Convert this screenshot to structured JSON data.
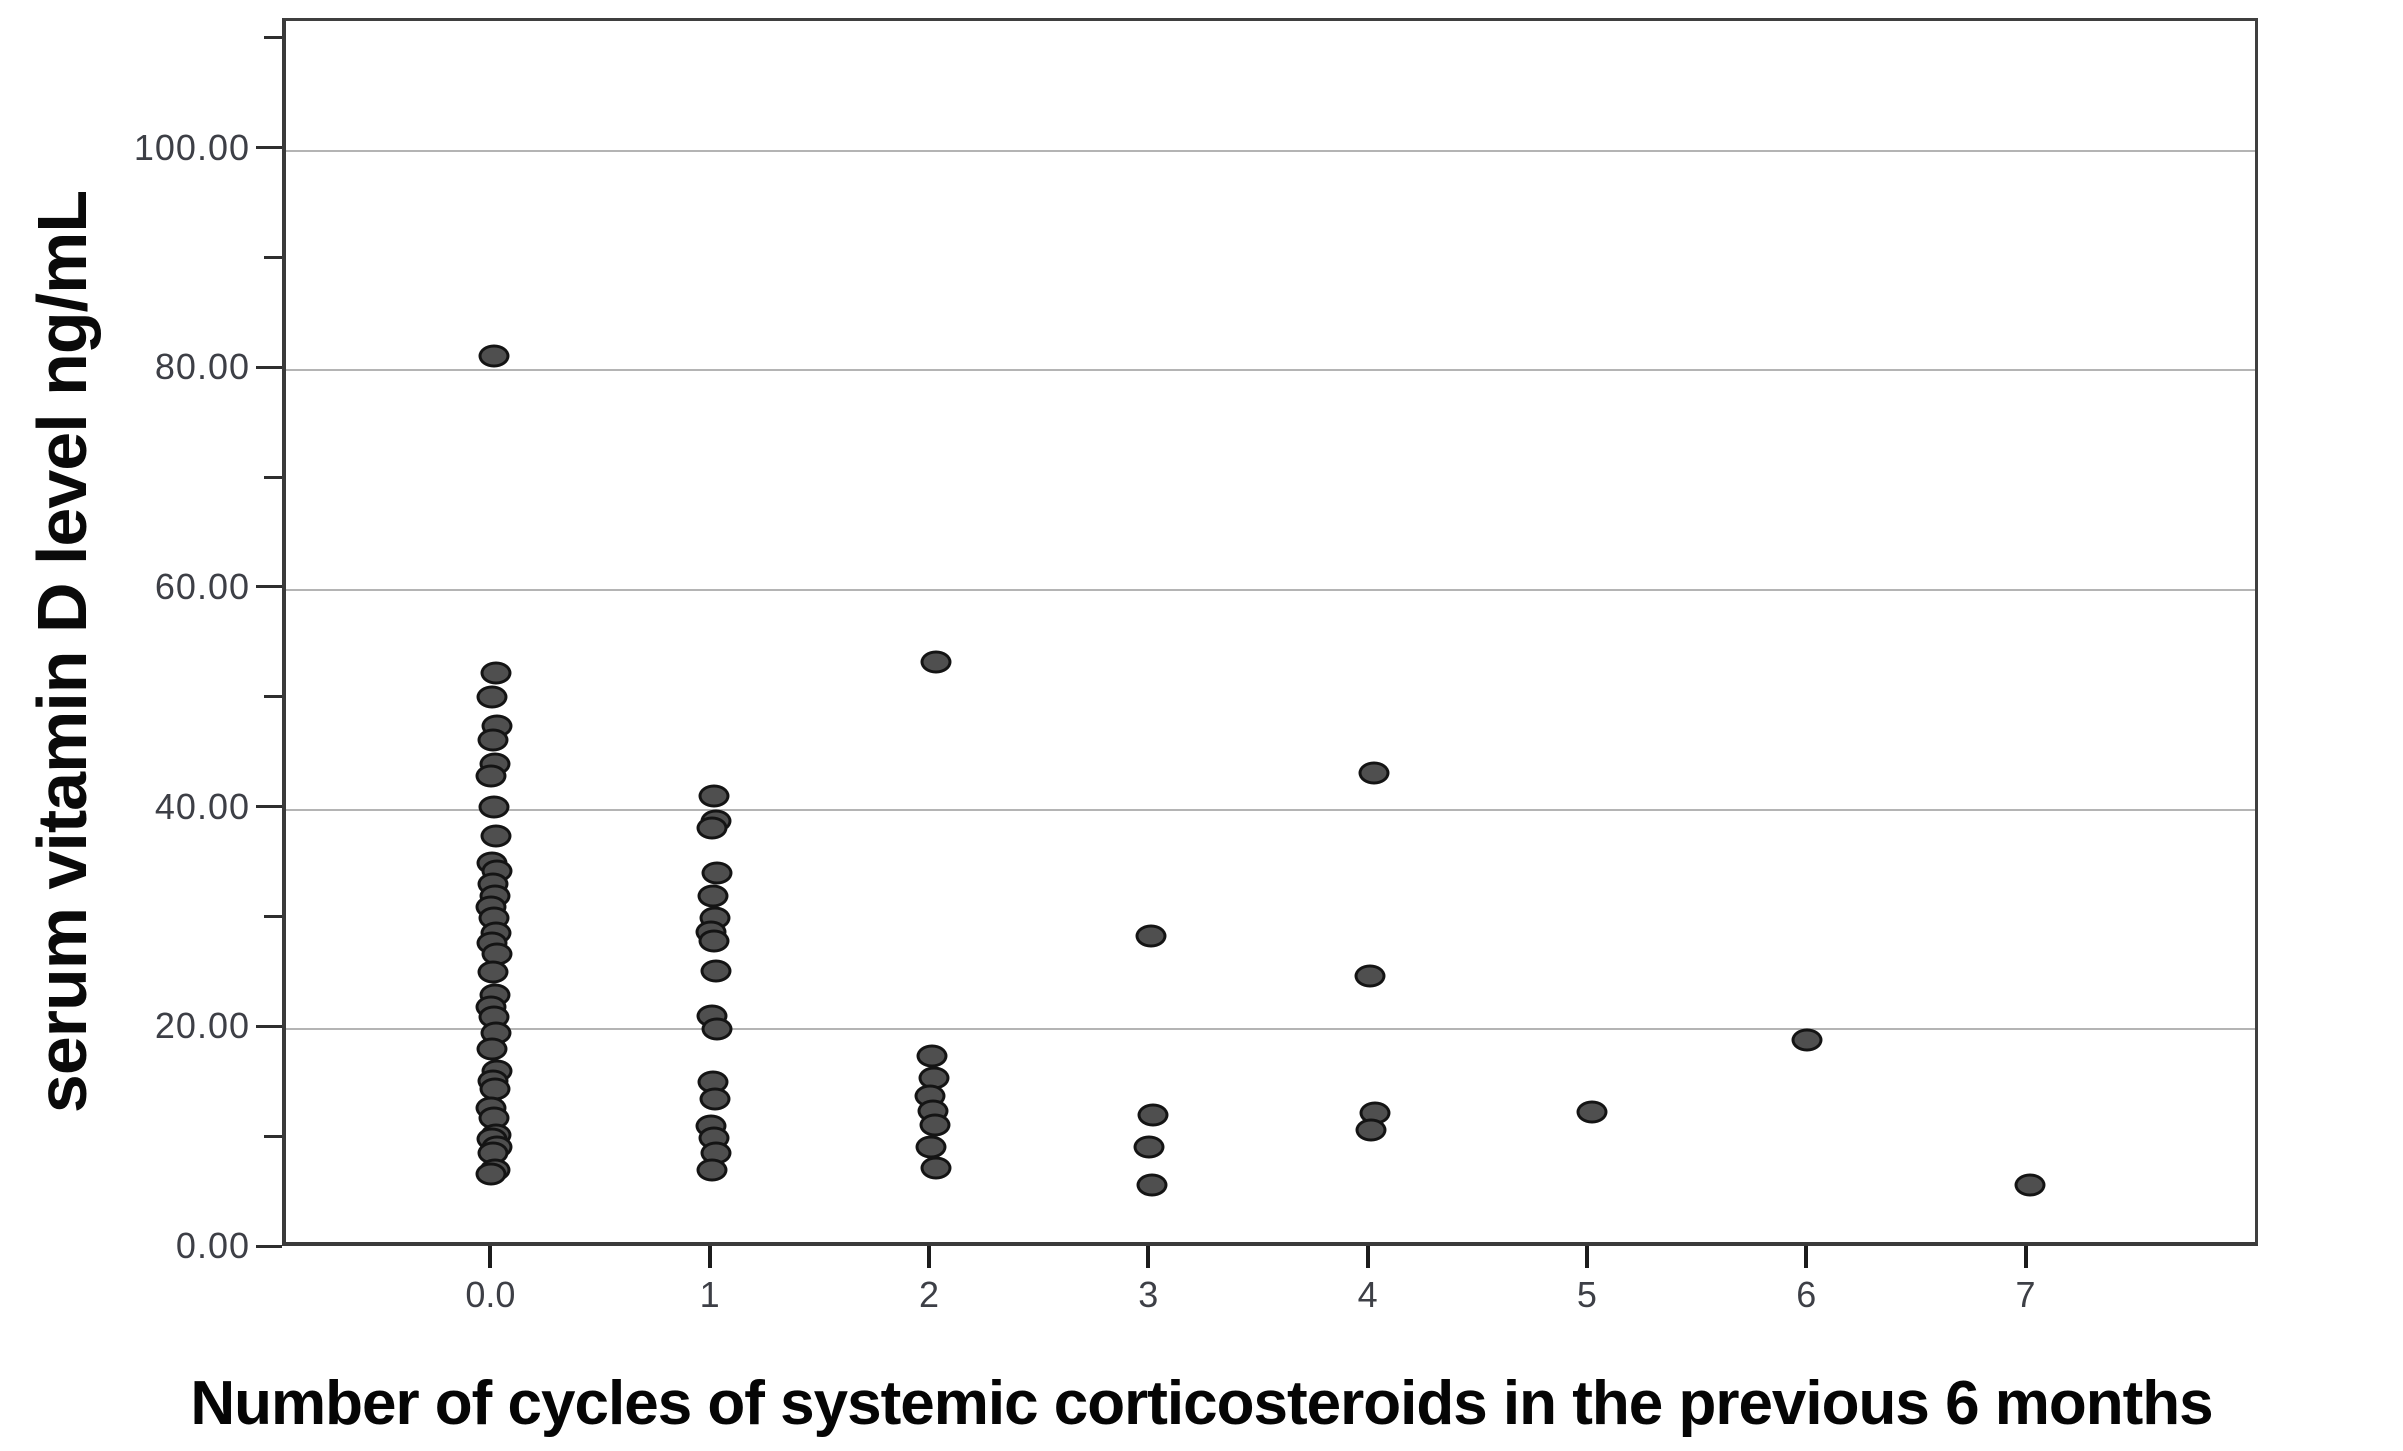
{
  "figure": {
    "background": "#ffffff"
  },
  "chart_data": {
    "type": "scatter",
    "title": "",
    "xlabel": "Number of cycles of systemic corticosteroids in the previous 6 months",
    "ylabel": "serum vitamin D level ng/mL",
    "xlim": [
      -0.95,
      8.06
    ],
    "ylim": [
      0,
      111.8
    ],
    "grid": "horizontal major gridlines only",
    "legend": "none",
    "x_ticks": [
      {
        "value": 0,
        "label": "0.0"
      },
      {
        "value": 1,
        "label": "1"
      },
      {
        "value": 2,
        "label": "2"
      },
      {
        "value": 3,
        "label": "3"
      },
      {
        "value": 4,
        "label": "4"
      },
      {
        "value": 5,
        "label": "5"
      },
      {
        "value": 6,
        "label": "6"
      },
      {
        "value": 7,
        "label": "7"
      }
    ],
    "y_ticks": [
      {
        "value": 0,
        "label": "0.00"
      },
      {
        "value": 20,
        "label": "20.00"
      },
      {
        "value": 40,
        "label": "40.00"
      },
      {
        "value": 60,
        "label": "60.00"
      },
      {
        "value": 80,
        "label": "80.00"
      },
      {
        "value": 100,
        "label": "100.00"
      }
    ],
    "y_minor_ticks": [
      10,
      30,
      50,
      70,
      90,
      110
    ],
    "gridline_values": [
      20,
      40,
      60,
      80,
      100
    ],
    "point_fill_color": "#4f4f4f",
    "point_border_color": "#141414",
    "gridline_color": "#b4b4b4",
    "n_points": 71,
    "points": [
      [
        0,
        81.3
      ],
      [
        0,
        52.4
      ],
      [
        0,
        50.3
      ],
      [
        0,
        47.6
      ],
      [
        0,
        46.3
      ],
      [
        0,
        44.2
      ],
      [
        0,
        43.1
      ],
      [
        0,
        40.2
      ],
      [
        0,
        37.6
      ],
      [
        0,
        35.1
      ],
      [
        0,
        34.4
      ],
      [
        0,
        33.2
      ],
      [
        0,
        32.1
      ],
      [
        0,
        31.1
      ],
      [
        0,
        30.1
      ],
      [
        0,
        28.8
      ],
      [
        0,
        27.9
      ],
      [
        0,
        26.9
      ],
      [
        0,
        25.2
      ],
      [
        0,
        23.1
      ],
      [
        0,
        22.0
      ],
      [
        0,
        21.1
      ],
      [
        0,
        19.7
      ],
      [
        0,
        18.2
      ],
      [
        0,
        16.2
      ],
      [
        0,
        15.3
      ],
      [
        0,
        14.6
      ],
      [
        0,
        12.8
      ],
      [
        0,
        11.9
      ],
      [
        0,
        10.4
      ],
      [
        0,
        10.0
      ],
      [
        0,
        9.3
      ],
      [
        0,
        8.7
      ],
      [
        0,
        7.2
      ],
      [
        0,
        6.8
      ],
      [
        1,
        41.2
      ],
      [
        1,
        39.0
      ],
      [
        1,
        38.3
      ],
      [
        1,
        34.2
      ],
      [
        1,
        32.1
      ],
      [
        1,
        30.1
      ],
      [
        1,
        28.9
      ],
      [
        1,
        28.0
      ],
      [
        1,
        25.3
      ],
      [
        1,
        21.2
      ],
      [
        1,
        20.0
      ],
      [
        1,
        15.2
      ],
      [
        1,
        13.7
      ],
      [
        1,
        11.2
      ],
      [
        1,
        10.1
      ],
      [
        1,
        8.7
      ],
      [
        1,
        7.2
      ],
      [
        2,
        53.4
      ],
      [
        2,
        17.6
      ],
      [
        2,
        15.6
      ],
      [
        2,
        13.9
      ],
      [
        2,
        12.6
      ],
      [
        2,
        11.3
      ],
      [
        2,
        9.3
      ],
      [
        2,
        7.4
      ],
      [
        3,
        28.5
      ],
      [
        3,
        12.2
      ],
      [
        3,
        9.3
      ],
      [
        3,
        5.8
      ],
      [
        4,
        43.3
      ],
      [
        4,
        24.9
      ],
      [
        4,
        12.4
      ],
      [
        4,
        10.8
      ],
      [
        5,
        12.5
      ],
      [
        6,
        19.0
      ],
      [
        7,
        5.8
      ]
    ]
  }
}
